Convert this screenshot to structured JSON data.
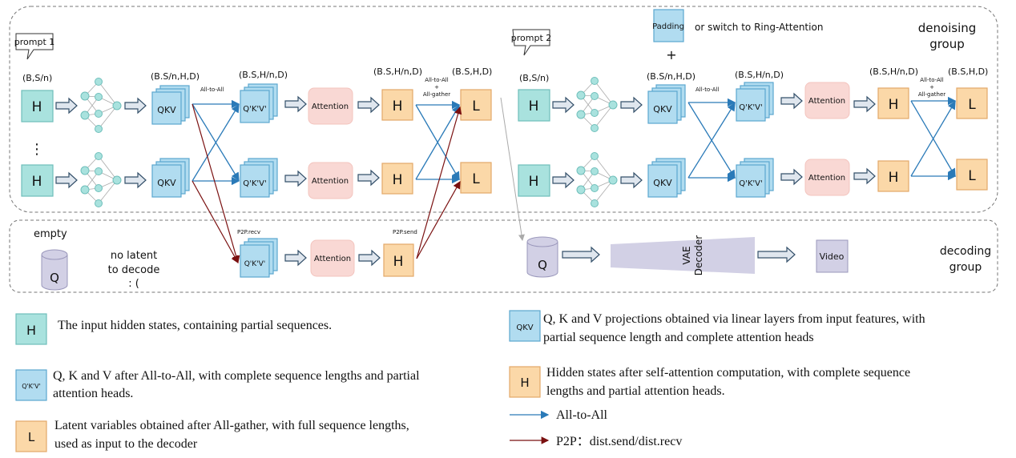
{
  "denoising": {
    "group_label_1": "denoising",
    "group_label_2": "group",
    "prompt1": "prompt 1",
    "prompt2": "prompt 2",
    "padding": "Padding",
    "ring_note": "or switch to Ring-Attention",
    "plus": "+",
    "dots": "⋮",
    "shape_input": "(B,S/n)",
    "shape_qkv": "(B.S/n,H,D)",
    "shape_qkv2": "(B.S,H/n,D)",
    "shape_h": "(B.S,H/n,D)",
    "shape_l": "(B.S,H,D)",
    "all_to_all": "All-to-All",
    "all_to_all_gather_1": "All-to-All",
    "all_to_all_gather_2": "+",
    "all_to_all_gather_3": "All-gather",
    "h": "H",
    "qkv": "QKV",
    "qkv2": "Q'K'V'",
    "attention": "Attention",
    "l": "L"
  },
  "decoding": {
    "group_label_1": "decoding",
    "group_label_2": "group",
    "empty": "empty",
    "q": "Q",
    "no_latent_1": "no latent",
    "no_latent_2": "to decode",
    "no_latent_3": ": (",
    "p2p_recv": "P2P.recv",
    "p2p_send": "P2P.send",
    "vae_1": "VAE",
    "vae_2": "Decoder",
    "video": "Video"
  },
  "legend": [
    {
      "symbol": "H",
      "text_1": "The input hidden states, containing partial sequences.",
      "text_2": ""
    },
    {
      "symbol": "QKV",
      "text_1": "Q, K and V projections obtained via linear layers from input features, with",
      "text_2": "partial sequence length and  complete attention heads"
    },
    {
      "symbol": "Q'K'V'",
      "text_1": "Q, K and V after All-to-All, with complete sequence lengths and partial",
      "text_2": "attention heads."
    },
    {
      "symbol": "H",
      "text_1": "Hidden states after self-attention computation, with complete sequence",
      "text_2": "lengths and partial attention heads."
    },
    {
      "symbol": "L",
      "text_1": "Latent variables obtained after All-gather, with full sequence lengths,",
      "text_2": "used as input to the decoder"
    },
    {
      "symbol": "",
      "text_1": "All-to-All",
      "text_2": ""
    },
    {
      "symbol": "",
      "text_1": "P2P：dist.send/dist.recv",
      "text_2": ""
    }
  ],
  "colors": {
    "input_h": "#a9e2de",
    "qkv": "#b1dcf0",
    "attention": "#f9d8d4",
    "output_h": "#fbd8a8",
    "vae": "#d2d0e5",
    "all_to_all_arrow": "#2a7ab8",
    "p2p_arrow": "#7a1010"
  }
}
